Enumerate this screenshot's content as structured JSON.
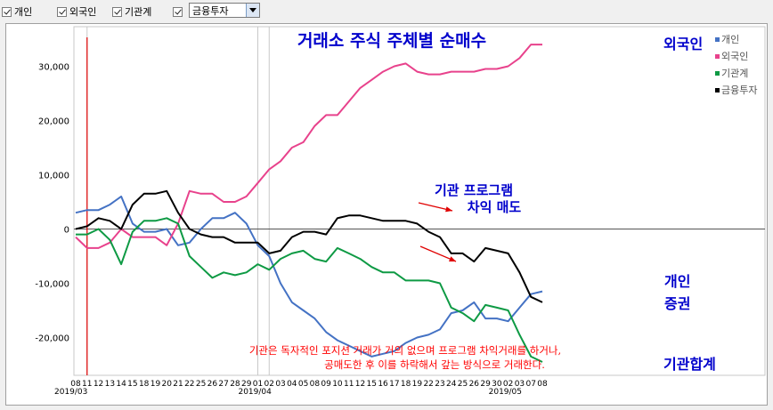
{
  "toolbar": {
    "checkboxes": [
      {
        "label": "개인",
        "checked": true
      },
      {
        "label": "외국인",
        "checked": true
      },
      {
        "label": "기관계",
        "checked": true
      },
      {
        "label": "",
        "checked": true
      }
    ],
    "select_value": "금융투자"
  },
  "chart_data": {
    "type": "line",
    "title": "거래소 주식 주체별 순매수",
    "x": [
      "08",
      "11",
      "12",
      "13",
      "14",
      "15",
      "18",
      "19",
      "20",
      "21",
      "22",
      "25",
      "26",
      "27",
      "28",
      "29",
      "01",
      "02",
      "03",
      "04",
      "05",
      "08",
      "09",
      "10",
      "11",
      "12",
      "15",
      "16",
      "17",
      "18",
      "19",
      "22",
      "23",
      "24",
      "25",
      "26",
      "29",
      "30",
      "02",
      "03",
      "07",
      "08"
    ],
    "month_labels": [
      {
        "label": "2019/03",
        "index": 0
      },
      {
        "label": "2019/04",
        "index": 16
      },
      {
        "label": "2019/05",
        "index": 38
      }
    ],
    "ylim": [
      -26000,
      36000
    ],
    "yticks": [
      30000,
      20000,
      10000,
      0,
      -10000,
      -20000
    ],
    "ytick_labels": [
      "30,000",
      "20,000",
      "10,000",
      "0",
      "-10,000",
      "-20,000"
    ],
    "vertical_gridlines": [
      "01",
      "11",
      "02"
    ],
    "highlight_x": "11",
    "series": [
      {
        "name": "개인",
        "color": "#4472c4",
        "values": [
          3000,
          3500,
          3500,
          4500,
          6000,
          1000,
          -500,
          -500,
          0,
          -3000,
          -2500,
          0,
          2000,
          2000,
          3000,
          1000,
          -3000,
          -5000,
          -10000,
          -13500,
          -15000,
          -16500,
          -19000,
          -20500,
          -21500,
          -22500,
          -23500,
          -23000,
          -22500,
          -21000,
          -20000,
          -19500,
          -18500,
          -15500,
          -15000,
          -13500,
          -16500,
          -16500,
          -17000,
          -14500,
          -12000,
          -11500
        ]
      },
      {
        "name": "외국인",
        "color": "#e8428c",
        "values": [
          -1500,
          -3500,
          -3500,
          -2500,
          0,
          -1500,
          -1500,
          -1500,
          -3000,
          1000,
          7000,
          6500,
          6500,
          5000,
          5000,
          6000,
          8500,
          11000,
          12500,
          15000,
          16000,
          19000,
          21000,
          21000,
          23500,
          26000,
          27500,
          29000,
          30000,
          30500,
          29000,
          28500,
          28500,
          29000,
          29000,
          29000,
          29500,
          29500,
          30000,
          31500,
          34000,
          34000
        ]
      },
      {
        "name": "기관계",
        "color": "#0e9a44",
        "values": [
          -1000,
          -1000,
          0,
          -2000,
          -6500,
          -500,
          1500,
          1500,
          2000,
          1000,
          -5000,
          -7000,
          -9000,
          -8000,
          -8500,
          -8000,
          -6500,
          -7500,
          -5500,
          -4500,
          -4000,
          -5500,
          -6000,
          -3500,
          -4500,
          -5500,
          -7000,
          -8000,
          -8000,
          -9500,
          -9500,
          -9500,
          -10000,
          -14500,
          -15500,
          -17000,
          -14000,
          -14500,
          -15000,
          -19500,
          -23500,
          -24500
        ]
      },
      {
        "name": "금융투자",
        "color": "#000000",
        "values": [
          0,
          500,
          2000,
          1500,
          0,
          4500,
          6500,
          6500,
          7000,
          3000,
          0,
          -1000,
          -1500,
          -1500,
          -2500,
          -2500,
          -2500,
          -4500,
          -4000,
          -1500,
          -500,
          -500,
          -1000,
          2000,
          2500,
          2500,
          2000,
          1500,
          1500,
          1500,
          1000,
          -500,
          -1500,
          -4500,
          -4500,
          -6000,
          -3500,
          -4000,
          -4500,
          -8000,
          -12500,
          -13500
        ]
      }
    ],
    "end_labels": [
      {
        "text": "외국인",
        "color": "#0000cc"
      },
      {
        "text": "개인",
        "color": "#0000cc"
      },
      {
        "text": "증권",
        "color": "#0000cc"
      },
      {
        "text": "기관합계",
        "color": "#0000cc"
      }
    ],
    "annotations": [
      {
        "text": "기관 프로그램",
        "color": "#0000cc"
      },
      {
        "text": "차익 매도",
        "color": "#0000cc"
      },
      {
        "text": "기관은 독자적인 포지션 거래가 거의 없으며 프로그램 차익거래를 하거나,",
        "color": "#ff0000"
      },
      {
        "text": "공매도한 후 이를 하락해서 갚는 방식으로 거래한다.",
        "color": "#ff0000"
      }
    ]
  }
}
